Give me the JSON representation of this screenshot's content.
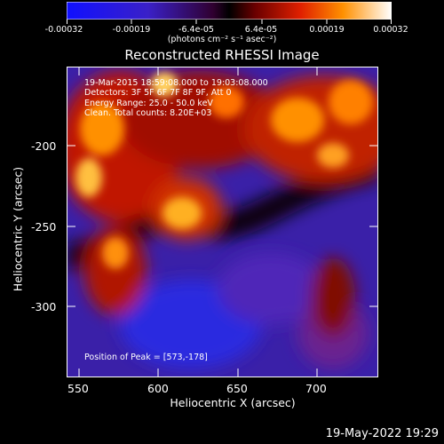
{
  "colorbar": {
    "ticks": [
      "-0.00032",
      "-0.00019",
      "-6.4e-05",
      "6.4e-05",
      "0.00019",
      "0.00032"
    ],
    "units_text": "(photons cm⁻² s⁻¹ asec⁻²)"
  },
  "plot": {
    "title": "Reconstructed RHESSI Image",
    "xlabel": "Heliocentric X (arcsec)",
    "ylabel": "Heliocentric Y (arcsec)",
    "x_ticks": [
      "550",
      "600",
      "650",
      "700"
    ],
    "y_ticks": [
      "-200",
      "-250",
      "-300"
    ],
    "overlay": {
      "line1": "19-Mar-2015 18:59:08.000 to 19:03:08.000",
      "line2": "Detectors: 3F 5F 6F 7F 8F 9F, Att 0",
      "line3": "Energy Range: 25.0 - 50.0 keV",
      "line4": "Clean. Total counts: 8.20E+03",
      "peak": "Position of Peak = [573,-178]"
    }
  },
  "timestamp": "19-May-2022 19:29",
  "colors": {
    "background": "#000000",
    "text": "#ffffff",
    "map_low": "#1a1aff",
    "map_high": "#ffffff"
  }
}
